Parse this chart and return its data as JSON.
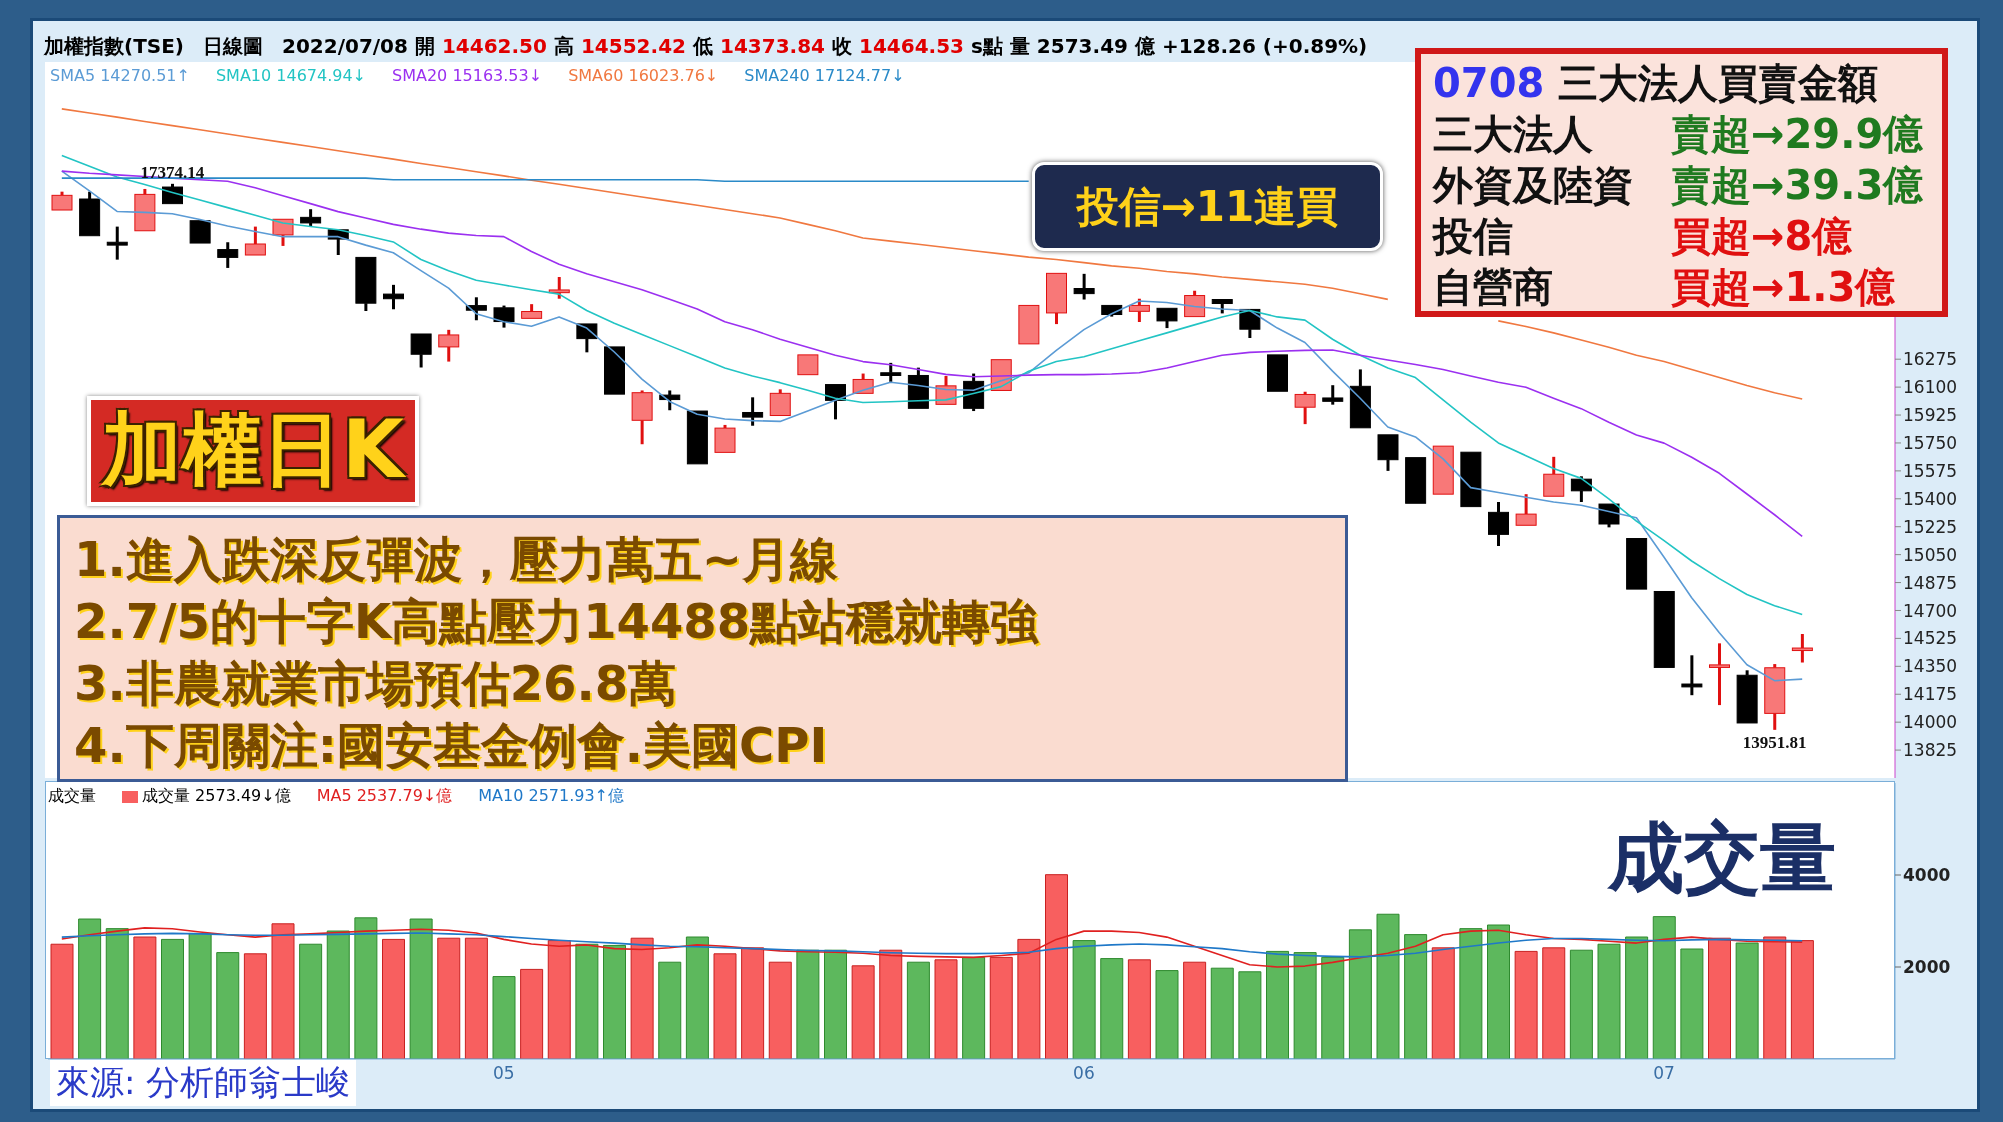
{
  "chart_data": [
    {
      "type": "candlestick",
      "title": "加權日K",
      "tick_labels": "y",
      "legend": "top left",
      "categories": [
        null,
        null,
        null,
        null,
        null,
        null,
        null,
        null,
        null,
        null,
        null,
        null,
        null,
        null,
        null,
        null,
        "05",
        null,
        null,
        null,
        null,
        null,
        null,
        null,
        null,
        null,
        null,
        null,
        null,
        null,
        null,
        null,
        null,
        null,
        null,
        null,
        null,
        "06",
        null,
        null,
        null,
        null,
        null,
        null,
        null,
        null,
        null,
        null,
        null,
        null,
        null,
        null,
        null,
        null,
        null,
        null,
        null,
        null,
        "07",
        null,
        null,
        null,
        null,
        null
      ],
      "ohlc": [
        [
          17210,
          17325,
          17210,
          17302
        ],
        [
          17279,
          17325,
          17049,
          17049
        ],
        [
          17008,
          17106,
          16899,
          16990
        ],
        [
          17080,
          17342,
          17080,
          17308
        ],
        [
          17354,
          17374.14,
          17250,
          17250
        ],
        [
          17143,
          17143,
          17003,
          17003
        ],
        [
          16962,
          17008,
          16847,
          16913
        ],
        [
          16928,
          17106,
          16928,
          16997
        ],
        [
          17054,
          17152,
          16985,
          17152
        ],
        [
          17164,
          17215,
          17106,
          17129
        ],
        [
          17086,
          17086,
          16928,
          17028
        ],
        [
          16913,
          16913,
          16577,
          16626
        ],
        [
          16683,
          16741,
          16588,
          16654
        ],
        [
          16433,
          16433,
          16223,
          16306
        ],
        [
          16352,
          16459,
          16260,
          16427
        ],
        [
          16611,
          16663,
          16519,
          16582
        ],
        [
          16597,
          16611,
          16473,
          16511
        ],
        [
          16531,
          16620,
          16519,
          16574
        ],
        [
          16692,
          16790,
          16654,
          16709
        ],
        [
          16496,
          16496,
          16318,
          16404
        ],
        [
          16352,
          16352,
          16056,
          16056
        ],
        [
          15892,
          16079,
          15742,
          16065
        ],
        [
          16050,
          16079,
          15955,
          16022
        ],
        [
          15950,
          15950,
          15619,
          15619
        ],
        [
          15691,
          15863,
          15691,
          15843
        ],
        [
          15941,
          16036,
          15858,
          15912
        ],
        [
          15922,
          16086,
          15922,
          16061
        ],
        [
          16178,
          16314,
          16178,
          16302
        ],
        [
          16116,
          16116,
          15898,
          16017
        ],
        [
          16061,
          16185,
          16061,
          16148
        ],
        [
          16190,
          16252,
          16133,
          16173
        ],
        [
          16173,
          16222,
          15967,
          15967
        ],
        [
          15992,
          16170,
          15992,
          16108
        ],
        [
          16136,
          16185,
          15950,
          15967
        ],
        [
          16079,
          16272,
          16079,
          16272
        ],
        [
          16371,
          16612,
          16371,
          16612
        ],
        [
          16565,
          16813,
          16495,
          16813
        ],
        [
          16718,
          16810,
          16649,
          16686
        ],
        [
          16612,
          16624,
          16542,
          16555
        ],
        [
          16575,
          16654,
          16508,
          16612
        ],
        [
          16594,
          16594,
          16470,
          16515
        ],
        [
          16542,
          16704,
          16542,
          16674
        ],
        [
          16649,
          16649,
          16562,
          16624
        ],
        [
          16587,
          16587,
          16408,
          16463
        ],
        [
          16302,
          16302,
          16074,
          16074
        ],
        [
          15974,
          16071,
          15868,
          16054
        ],
        [
          16032,
          16112,
          15990,
          16011
        ],
        [
          16105,
          16211,
          15845,
          15845
        ],
        [
          15801,
          15801,
          15575,
          15645
        ],
        [
          15658,
          15666,
          15372,
          15372
        ],
        [
          15429,
          15730,
          15429,
          15730
        ],
        [
          15692,
          15692,
          15351,
          15351
        ],
        [
          15315,
          15380,
          15104,
          15177
        ],
        [
          15234,
          15429,
          15234,
          15304
        ],
        [
          15416,
          15663,
          15416,
          15554
        ],
        [
          15523,
          15541,
          15380,
          15450
        ],
        [
          15367,
          15367,
          15221,
          15242
        ],
        [
          15151,
          15151,
          14834,
          14834
        ],
        [
          14819,
          14819,
          14338,
          14343
        ],
        [
          14239,
          14419,
          14169,
          14221
        ],
        [
          14343,
          14494,
          14107,
          14359
        ],
        [
          14294,
          14325,
          13995,
          13995
        ],
        [
          14055,
          14364,
          13951.81,
          14341
        ],
        [
          14462.5,
          14552.42,
          14373.84,
          14464.53
        ]
      ],
      "series": [
        {
          "name": "SMA5 14270.51↑",
          "type": "line",
          "color": "#5b9bd5",
          "values": [
            17454,
            17330,
            17201,
            17195,
            17187,
            17150,
            17110,
            17075,
            17043,
            17043,
            17043,
            16990,
            16942,
            16830,
            16720,
            16560,
            16510,
            16482,
            16540,
            16470,
            16320,
            16150,
            16010,
            15930,
            15900,
            15890,
            15885,
            15950,
            16017,
            16080,
            16130,
            16110,
            16085,
            16080,
            16140,
            16190,
            16330,
            16460,
            16560,
            16640,
            16630,
            16605,
            16590,
            16580,
            16470,
            16380,
            16200,
            16030,
            15850,
            15788,
            15650,
            15470,
            15440,
            15410,
            15380,
            15360,
            15320,
            15281,
            15034,
            14780,
            14560,
            14360,
            14260,
            14270
          ]
        },
        {
          "name": "SMA10 14674.94↓",
          "type": "line",
          "color": "#22c4c4",
          "values": [
            17552,
            17485,
            17417,
            17370,
            17320,
            17273,
            17225,
            17177,
            17129,
            17107,
            17086,
            17050,
            17010,
            16900,
            16830,
            16770,
            16740,
            16710,
            16683,
            16580,
            16500,
            16430,
            16360,
            16290,
            16220,
            16170,
            16128,
            16080,
            16030,
            16004,
            16008,
            16015,
            16020,
            16060,
            16103,
            16200,
            16260,
            16290,
            16340,
            16390,
            16440,
            16490,
            16540,
            16580,
            16540,
            16520,
            16400,
            16300,
            16220,
            16160,
            16020,
            15880,
            15750,
            15670,
            15590,
            15528,
            15400,
            15260,
            15138,
            15010,
            14900,
            14800,
            14730,
            14675
          ]
        },
        {
          "name": "SMA20 15163.53↓",
          "type": "line",
          "color": "#9b30f0",
          "values": [
            17454,
            17440,
            17430,
            17420,
            17410,
            17400,
            17390,
            17350,
            17300,
            17250,
            17200,
            17160,
            17120,
            17090,
            17065,
            17050,
            17043,
            16950,
            16870,
            16810,
            16760,
            16710,
            16650,
            16590,
            16510,
            16460,
            16400,
            16350,
            16300,
            16260,
            16240,
            16210,
            16180,
            16165,
            16170,
            16175,
            16178,
            16178,
            16182,
            16190,
            16220,
            16260,
            16300,
            16318,
            16325,
            16330,
            16333,
            16300,
            16270,
            16242,
            16210,
            16170,
            16130,
            16099,
            16030,
            15965,
            15880,
            15800,
            15749,
            15660,
            15560,
            15430,
            15300,
            15165
          ]
        },
        {
          "name": "SMA60 16023.76↓",
          "type": "line",
          "color": "#f07840",
          "values": [
            17844,
            17818,
            17792,
            17765,
            17739,
            17713,
            17686,
            17660,
            17634,
            17608,
            17581,
            17555,
            17529,
            17502,
            17476,
            17450,
            17424,
            17397,
            17371,
            17345,
            17318,
            17292,
            17266,
            17240,
            17213,
            17187,
            17160,
            17120,
            17080,
            17035,
            17015,
            16995,
            16975,
            16955,
            16935,
            16915,
            16900,
            16880,
            16860,
            16845,
            16825,
            16810,
            16790,
            16775,
            16760,
            16745,
            16720,
            16685,
            16650,
            null,
            null,
            null,
            16515,
            16480,
            16440,
            16395,
            16350,
            16300,
            16260,
            16210,
            16160,
            16110,
            16065,
            16025
          ]
        },
        {
          "name": "SMA240 17124.77↓",
          "type": "line",
          "color": "#2a8ac8",
          "values": [
            17410,
            17410,
            17410,
            17410,
            17410,
            17410,
            17410,
            17410,
            17410,
            17410,
            17410,
            17410,
            17400,
            17400,
            17400,
            17400,
            17400,
            17400,
            17400,
            17400,
            17400,
            17400,
            17400,
            17400,
            17390,
            17390,
            17390,
            17390,
            17390,
            17390,
            17390,
            17390,
            17390,
            17390,
            17390,
            17390,
            null,
            null,
            null,
            null,
            null,
            null,
            null,
            null,
            null,
            null,
            null,
            null,
            null,
            null,
            null,
            null,
            null,
            null,
            null,
            null,
            null,
            null,
            null,
            null,
            null,
            null,
            null,
            null
          ]
        }
      ],
      "ylim": [
        13650,
        18050
      ],
      "yticks": [
        13825,
        14000,
        14175,
        14350,
        14525,
        14700,
        14875,
        15050,
        15225,
        15400,
        15575,
        15750,
        15925,
        16100,
        16275
      ],
      "annotations": [
        "加權指數(TSE)",
        "日線圖",
        "2022/07/08",
        "開",
        "14462.50",
        "高",
        "14552.42",
        "低",
        "14373.84",
        "收",
        "14464.53",
        "s點",
        "量 2573.49 億",
        "+128.26 (+0.89%)",
        {
          "text": "17374.14",
          "y": 17374.14
        },
        {
          "text": "13951.81",
          "y": 13951.81
        },
        "投信→11連買",
        "0708",
        "三大法人買賣金額",
        "三大法人",
        "賣超→29.9億",
        "外資及陸資",
        "賣超→39.3億",
        "投信",
        "買超→8億",
        "自營商",
        "買超→1.3億",
        "1.進入跌深反彈波，壓力萬五~月線",
        "2.7/5的十字K高點壓力14488點站穩就轉強",
        "3.非農就業市場預估26.8萬",
        "4.下周關注:國安基金例會.美國CPI"
      ]
    },
    {
      "type": "bar",
      "title": "成交量",
      "legend": "top left",
      "categories": [
        null,
        null,
        null,
        null,
        null,
        null,
        null,
        null,
        null,
        null,
        null,
        null,
        null,
        null,
        null,
        null,
        "05",
        null,
        null,
        null,
        null,
        null,
        null,
        null,
        null,
        null,
        null,
        null,
        null,
        null,
        null,
        null,
        null,
        null,
        null,
        null,
        null,
        "06",
        null,
        null,
        null,
        null,
        null,
        null,
        null,
        null,
        null,
        null,
        null,
        null,
        null,
        null,
        null,
        null,
        null,
        null,
        null,
        null,
        "07",
        null,
        null,
        null,
        null,
        null
      ],
      "series": [
        {
          "name": "成交量 2573.49↓億",
          "values": [
            2495,
            3043,
            2834,
            2652,
            2600,
            2730,
            2313,
            2287,
            2939,
            2495,
            2782,
            3069,
            2600,
            3043,
            2626,
            2626,
            1792,
            1948,
            2574,
            2495,
            2469,
            2626,
            2104,
            2652,
            2287,
            2417,
            2104,
            2365,
            2365,
            2026,
            2365,
            2104,
            2156,
            2209,
            2209,
            2600,
            4007,
            2574,
            2183,
            2156,
            1922,
            2104,
            1974,
            1896,
            2339,
            2313,
            2209,
            2808,
            3147,
            2704,
            2417,
            2834,
            2913,
            2339,
            2417,
            2365,
            2495,
            2652,
            3095,
            2391,
            2626,
            2521,
            2652,
            2573.49
          ],
          "colors": [
            "#f85f5f",
            "#5db85d",
            "#5db85d",
            "#f85f5f",
            "#5db85d",
            "#5db85d",
            "#5db85d",
            "#f85f5f",
            "#f85f5f",
            "#5db85d",
            "#5db85d",
            "#5db85d",
            "#f85f5f",
            "#5db85d",
            "#f85f5f",
            "#f85f5f",
            "#5db85d",
            "#f85f5f",
            "#f85f5f",
            "#5db85d",
            "#5db85d",
            "#f85f5f",
            "#5db85d",
            "#5db85d",
            "#f85f5f",
            "#f85f5f",
            "#f85f5f",
            "#5db85d",
            "#5db85d",
            "#f85f5f",
            "#f85f5f",
            "#5db85d",
            "#f85f5f",
            "#5db85d",
            "#f85f5f",
            "#f85f5f",
            "#f85f5f",
            "#5db85d",
            "#5db85d",
            "#f85f5f",
            "#5db85d",
            "#f85f5f",
            "#5db85d",
            "#5db85d",
            "#5db85d",
            "#5db85d",
            "#5db85d",
            "#5db85d",
            "#5db85d",
            "#5db85d",
            "#f85f5f",
            "#5db85d",
            "#5db85d",
            "#f85f5f",
            "#f85f5f",
            "#5db85d",
            "#5db85d",
            "#5db85d",
            "#5db85d",
            "#5db85d",
            "#f85f5f",
            "#5db85d",
            "#f85f5f",
            "#f85f5f"
          ]
        },
        {
          "name": "MA5 2537.79↓億",
          "type": "line",
          "color": "#e02020",
          "values": [
            2610,
            2700,
            2780,
            2850,
            2830,
            2760,
            2700,
            2650,
            2700,
            2720,
            2750,
            2780,
            2800,
            2820,
            2800,
            2740,
            2600,
            2500,
            2450,
            2480,
            2400,
            2380,
            2420,
            2480,
            2450,
            2400,
            2350,
            2330,
            2320,
            2300,
            2250,
            2230,
            2220,
            2210,
            2250,
            2300,
            2600,
            2780,
            2780,
            2750,
            2650,
            2450,
            2250,
            2050,
            2000,
            2020,
            2100,
            2200,
            2300,
            2450,
            2700,
            2780,
            2800,
            2700,
            2620,
            2600,
            2560,
            2520,
            2600,
            2650,
            2600,
            2560,
            2550,
            2540
          ]
        },
        {
          "name": "MA10 2571.93↑億",
          "type": "line",
          "color": "#1f78c8",
          "values": [
            2650,
            2680,
            2700,
            2720,
            2730,
            2720,
            2700,
            2690,
            2690,
            2700,
            2710,
            2720,
            2730,
            2740,
            2720,
            2700,
            2660,
            2620,
            2580,
            2550,
            2520,
            2480,
            2450,
            2440,
            2420,
            2400,
            2380,
            2360,
            2350,
            2330,
            2310,
            2300,
            2290,
            2290,
            2300,
            2320,
            2400,
            2450,
            2480,
            2500,
            2480,
            2440,
            2400,
            2330,
            2280,
            2250,
            2230,
            2220,
            2250,
            2300,
            2380,
            2450,
            2520,
            2580,
            2620,
            2620,
            2600,
            2580,
            2570,
            2590,
            2600,
            2590,
            2580,
            2570
          ]
        }
      ],
      "ylim": [
        0,
        6000
      ],
      "yticks": [
        2000,
        4000
      ],
      "annotations": [
        "成交量",
        "來源: 分析師翁士峻"
      ]
    }
  ]
}
